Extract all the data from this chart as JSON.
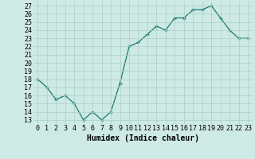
{
  "x": [
    0,
    1,
    2,
    3,
    4,
    5,
    6,
    7,
    8,
    9,
    10,
    11,
    12,
    13,
    14,
    15,
    16,
    17,
    18,
    19,
    20,
    21,
    22,
    23
  ],
  "y": [
    18,
    17,
    15.5,
    16,
    15,
    13,
    14,
    13,
    14,
    17.5,
    22,
    22.5,
    23.5,
    24.5,
    24,
    25.5,
    25.5,
    26.5,
    26.5,
    27,
    25.5,
    24,
    23,
    23
  ],
  "line_color": "#1a7a6e",
  "marker_color": "#1a7a6e",
  "bg_color": "#ceeae4",
  "grid_color": "#aacfca",
  "xlabel": "Humidex (Indice chaleur)",
  "xlim": [
    -0.5,
    23.5
  ],
  "ylim": [
    12.5,
    27.5
  ],
  "yticks": [
    13,
    14,
    15,
    16,
    17,
    18,
    19,
    20,
    21,
    22,
    23,
    24,
    25,
    26,
    27
  ],
  "xtick_labels": [
    "0",
    "1",
    "2",
    "3",
    "4",
    "5",
    "6",
    "7",
    "8",
    "9",
    "10",
    "11",
    "12",
    "13",
    "14",
    "15",
    "16",
    "17",
    "18",
    "19",
    "20",
    "21",
    "22",
    "23"
  ],
  "label_fontsize": 7,
  "tick_fontsize": 6
}
